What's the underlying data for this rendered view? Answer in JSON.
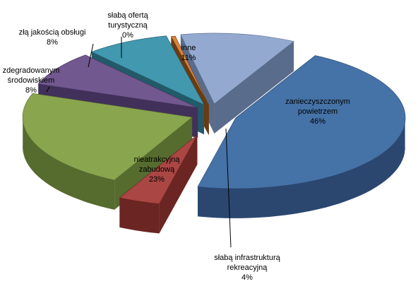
{
  "chart_data": {
    "type": "pie",
    "title": "",
    "slices": [
      {
        "label_lines": [
          "zanieczyszczonym",
          "powietrzem"
        ],
        "pct_label": "46%",
        "value": 46,
        "color": "#4572A7",
        "dark": "#2B4770"
      },
      {
        "label_lines": [
          "słabą infrastrukturą",
          "rekreacyjną"
        ],
        "pct_label": "4%",
        "value": 4,
        "color": "#AA4643",
        "dark": "#6B2523"
      },
      {
        "label_lines": [
          "nieatrakcyjną",
          "zabudową"
        ],
        "pct_label": "23%",
        "value": 23,
        "color": "#89A54E",
        "dark": "#566B2E"
      },
      {
        "label_lines": [
          "zdegradowanym",
          "środowiskiem"
        ],
        "pct_label": "8%",
        "value": 8,
        "color": "#71588F",
        "dark": "#41305A"
      },
      {
        "label_lines": [
          "złą  jakością obsługi"
        ],
        "pct_label": "8%",
        "value": 8,
        "color": "#4198AF",
        "dark": "#235A6A"
      },
      {
        "label_lines": [
          "słabą ofertą",
          "turystyczną"
        ],
        "pct_label": "0%",
        "value": 0.4,
        "color": "#DB843D",
        "dark": "#6B3A10"
      },
      {
        "label_lines": [
          "inne"
        ],
        "pct_label": "11%",
        "value": 11,
        "color": "#93A9CF",
        "dark": "#5A6C8C"
      }
    ]
  }
}
